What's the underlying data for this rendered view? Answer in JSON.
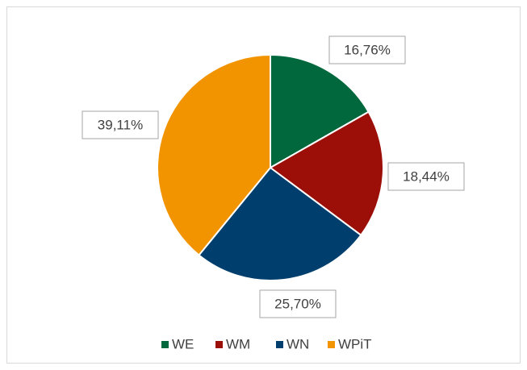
{
  "chart_data": {
    "type": "pie",
    "categories": [
      "WE",
      "WM",
      "WN",
      "WPiT"
    ],
    "values": [
      16.76,
      18.44,
      25.7,
      39.11
    ],
    "value_labels": [
      "16,76%",
      "18,44%",
      "25,70%",
      "39,11%"
    ],
    "colors": [
      "#00683c",
      "#9c0f08",
      "#003f6d",
      "#f29300"
    ]
  }
}
